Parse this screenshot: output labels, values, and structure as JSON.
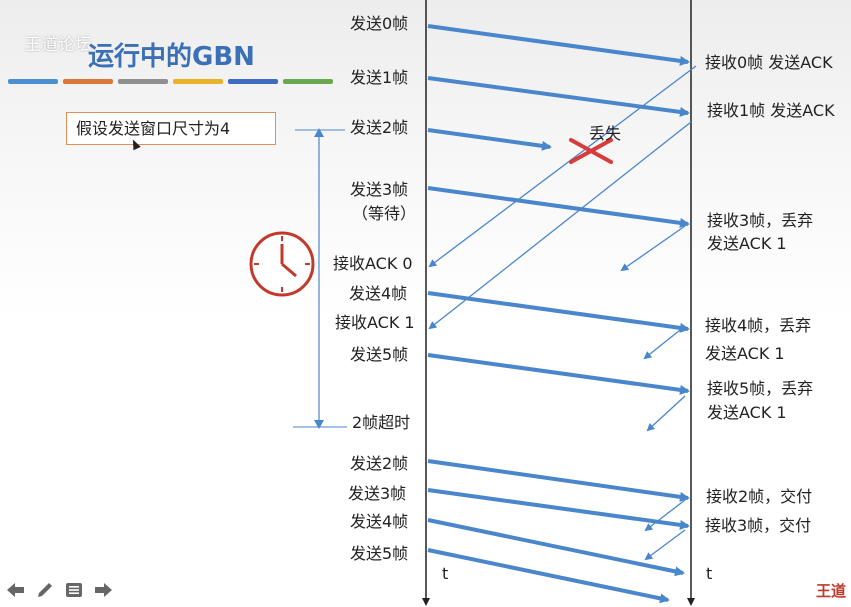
{
  "header": {
    "title": "运行中的GBN",
    "watermark": "王道论坛",
    "stripe_colors": [
      "#4a8fd0",
      "#d9783a",
      "#8f8f8f",
      "#e8b22a",
      "#3d6cc0",
      "#6aa84f"
    ]
  },
  "note": {
    "text": "假设发送窗口尺寸为4"
  },
  "lost_label": "丢失",
  "timeout_label": "2帧超时",
  "time_label": "t",
  "brand": "王道",
  "sender": [
    {
      "id": "send0",
      "text": "发送0帧"
    },
    {
      "id": "send1",
      "text": "发送1帧"
    },
    {
      "id": "send2",
      "text": "发送2帧"
    },
    {
      "id": "send3",
      "text": "发送3帧"
    },
    {
      "id": "wait",
      "text": "（等待）"
    },
    {
      "id": "ack0",
      "text": "接收ACK 0"
    },
    {
      "id": "send4",
      "text": "发送4帧"
    },
    {
      "id": "ack1",
      "text": "接收ACK 1"
    },
    {
      "id": "send5",
      "text": "发送5帧"
    },
    {
      "id": "resend2",
      "text": "发送2帧"
    },
    {
      "id": "resend3",
      "text": "发送3帧"
    },
    {
      "id": "resend4",
      "text": "发送4帧"
    },
    {
      "id": "resend5",
      "text": "发送5帧"
    }
  ],
  "receiver": [
    {
      "id": "recv0",
      "text": "接收0帧 发送ACK"
    },
    {
      "id": "recv1",
      "text": "接收1帧 发送ACK"
    },
    {
      "id": "recv3a",
      "text": "接收3帧，丢弃"
    },
    {
      "id": "recv3b",
      "text": "发送ACK 1"
    },
    {
      "id": "recv4a",
      "text": "接收4帧，丢弃"
    },
    {
      "id": "recv4b",
      "text": "发送ACK 1"
    },
    {
      "id": "recv5a",
      "text": "接收5帧，丢弃"
    },
    {
      "id": "recv5b",
      "text": "发送ACK 1"
    },
    {
      "id": "recv2",
      "text": "接收2帧，交付"
    },
    {
      "id": "recv3c",
      "text": "接收3帧，交付"
    }
  ],
  "colors": {
    "arrow": "#4a86cc",
    "lost_x": "#d93a3a",
    "clock": "#c0392b",
    "timeline": "#222222"
  },
  "nav_icons": [
    "back-arrow-icon",
    "pencil-icon",
    "menu-icon",
    "forward-arrow-icon"
  ]
}
